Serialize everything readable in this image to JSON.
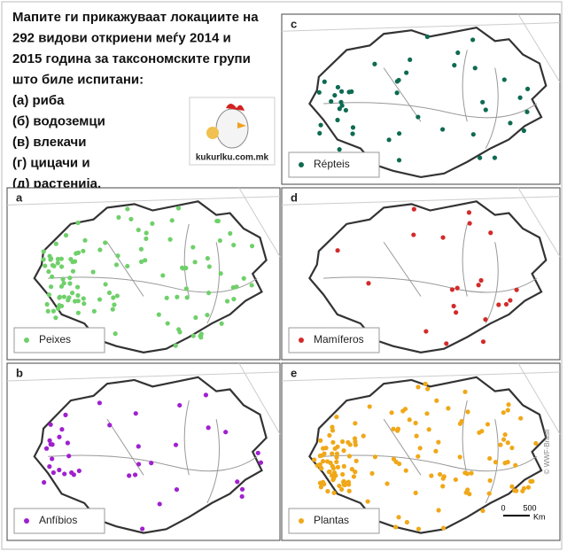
{
  "intro": {
    "lines": [
      "Мапите ги прикажуваат локациите на",
      "292 видови откриени меѓу 2014 и",
      "2015 година за таксономските групи",
      "што биле испитани:",
      "(а) риба",
      "(б) водоземци",
      "(в) влекачи",
      "(г) цицачи и",
      "(д) растенија."
    ]
  },
  "logo": {
    "text": "kukurlku.com.mk"
  },
  "panels": [
    {
      "letter": "c",
      "legend": "Répteis",
      "color": "#0d6b52"
    },
    {
      "letter": "a",
      "legend": "Peixes",
      "color": "#6fd06a"
    },
    {
      "letter": "d",
      "legend": "Mamíferos",
      "color": "#d42a2a"
    },
    {
      "letter": "b",
      "legend": "Anfíbios",
      "color": "#a020d0"
    },
    {
      "letter": "e",
      "legend": "Plantas",
      "color": "#f0a818"
    }
  ],
  "scale": {
    "zero": "0",
    "five": "500",
    "unit": "Km"
  },
  "credit": "© WWF-Brasil"
}
